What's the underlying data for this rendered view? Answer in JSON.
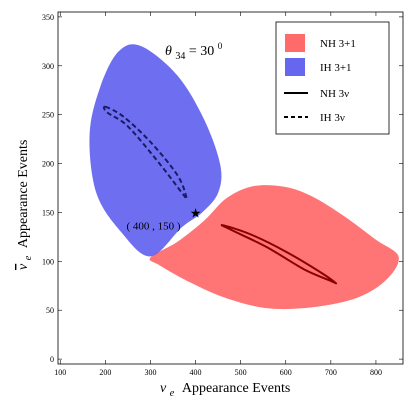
{
  "chart_data": {
    "type": "scatter",
    "title": "",
    "xlabel": "Appearance Events",
    "xlabel_symbol": "ν",
    "xlabel_sub": "e",
    "ylabel": "Appearance Events",
    "ylabel_symbol": "ν",
    "ylabel_sub": "e",
    "xlim": [
      95,
      860
    ],
    "ylim": [
      -5,
      355
    ],
    "x_ticks": [
      100,
      200,
      300,
      400,
      500,
      600,
      700,
      800
    ],
    "y_ticks": [
      0,
      50,
      100,
      150,
      200,
      250,
      300,
      350
    ],
    "annotation": {
      "theta_symbol": "θ",
      "theta_sub": "34",
      "theta_eq": " = 30",
      "theta_sup": "0"
    },
    "point": {
      "x": 400,
      "y": 150,
      "label": "( 400 , 150 )",
      "marker": "★"
    },
    "legend": {
      "position": "top-right",
      "entries": [
        {
          "label": "NH 3+1",
          "kind": "fill",
          "color": "#ff6b6b"
        },
        {
          "label": "IH 3+1",
          "kind": "fill",
          "color": "#6666ee"
        },
        {
          "label": "NH 3ν",
          "kind": "solid",
          "color": "#000000"
        },
        {
          "label": "IH 3ν",
          "kind": "dashed",
          "color": "#000000"
        }
      ]
    },
    "series": [
      {
        "name": "NH 3+1",
        "kind": "region",
        "color": "#ff5c5c",
        "opacity": 0.85,
        "points": [
          [
            300,
            104
          ],
          [
            360,
            120
          ],
          [
            420,
            142
          ],
          [
            470,
            165
          ],
          [
            530,
            177
          ],
          [
            600,
            176
          ],
          [
            660,
            166
          ],
          [
            730,
            146
          ],
          [
            800,
            122
          ],
          [
            850,
            105
          ],
          [
            825,
            82
          ],
          [
            760,
            63
          ],
          [
            660,
            53
          ],
          [
            560,
            52
          ],
          [
            470,
            62
          ],
          [
            390,
            78
          ],
          [
            320,
            96
          ]
        ]
      },
      {
        "name": "IH 3+1",
        "kind": "region",
        "color": "#5555ee",
        "opacity": 0.85,
        "points": [
          [
            280,
            320
          ],
          [
            360,
            290
          ],
          [
            420,
            244
          ],
          [
            455,
            198
          ],
          [
            450,
            170
          ],
          [
            415,
            150
          ],
          [
            370,
            135
          ],
          [
            300,
            105
          ],
          [
            235,
            130
          ],
          [
            180,
            170
          ],
          [
            165,
            230
          ],
          [
            190,
            280
          ],
          [
            230,
            315
          ]
        ]
      },
      {
        "name": "NH 3ν",
        "kind": "ellipse-outline",
        "color": "#880000",
        "style": "solid",
        "center": [
          580,
          108
        ],
        "points": [
          [
            460,
            137
          ],
          [
            520,
            128
          ],
          [
            600,
            110
          ],
          [
            680,
            88
          ],
          [
            710,
            78
          ],
          [
            700,
            80
          ],
          [
            640,
            92
          ],
          [
            560,
            114
          ],
          [
            480,
            132
          ]
        ]
      },
      {
        "name": "IH 3ν",
        "kind": "ellipse-outline",
        "color": "#1a1a66",
        "style": "dashed",
        "center": [
          290,
          210
        ],
        "points": [
          [
            200,
            258
          ],
          [
            240,
            248
          ],
          [
            300,
            222
          ],
          [
            360,
            188
          ],
          [
            380,
            165
          ],
          [
            370,
            170
          ],
          [
            320,
            200
          ],
          [
            250,
            238
          ],
          [
            205,
            252
          ]
        ]
      }
    ]
  }
}
